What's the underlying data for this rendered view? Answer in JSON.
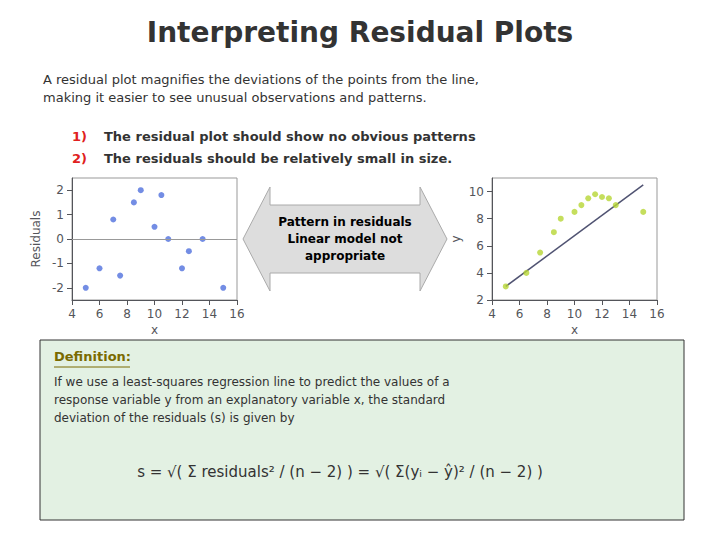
{
  "chart_data": [
    {
      "type": "scatter",
      "title": "Interpreting Residual Plots",
      "annotations": [
        "A residual plot magnifies the deviations of the points from the line,\nmaking it easier to see unusual observations and patterns.",
        "1)",
        "The residual plot should show no obvious patterns",
        "2)",
        "The residuals should be relatively small in size.",
        "Pattern in residuals\nLinear model not\nappropriate",
        "Definition:",
        "If we use a least-squares regression line to predict the values of a",
        "response variable y from an explanatory variable x, the standard",
        "deviation of the residuals (s) is given by",
        "s = √( Σ residuals² / (n − 2) ) = √( Σ(yᵢ − ŷ)² / (n − 2) )"
      ],
      "x": [
        5.0,
        6.0,
        7.0,
        7.5,
        8.5,
        9.0,
        10.0,
        10.5,
        11.0,
        12.0,
        12.5,
        13.5,
        15.0
      ],
      "values": [
        -2.0,
        -1.2,
        0.8,
        -1.5,
        1.5,
        2.0,
        0.5,
        1.8,
        0.0,
        -1.2,
        -0.5,
        0.0,
        -2.0
      ],
      "reference_line": 0,
      "xlabel": "x",
      "ylabel": "Residuals",
      "xlim": [
        4,
        16
      ],
      "xticks": [
        4,
        6,
        8,
        10,
        12,
        14,
        16
      ],
      "ylim": [
        -2.5,
        2.5
      ],
      "yticks": [
        -2,
        -1,
        0,
        1,
        2
      ],
      "grid": false
    },
    {
      "type": "scatter",
      "series": [
        {
          "type": "scatter",
          "x": [
            5.0,
            6.5,
            7.5,
            8.5,
            9.0,
            10.0,
            10.5,
            11.0,
            11.5,
            12.0,
            12.5,
            13.0,
            15.0
          ],
          "values": [
            3.0,
            4.0,
            5.5,
            7.0,
            8.0,
            8.5,
            9.0,
            9.5,
            9.8,
            9.6,
            9.5,
            9.0,
            8.5
          ]
        },
        {
          "type": "line",
          "x": [
            5.0,
            15.0
          ],
          "values": [
            3.0,
            10.5
          ]
        }
      ],
      "xlabel": "x",
      "ylabel": "y",
      "xlim": [
        4,
        16
      ],
      "xticks": [
        4,
        6,
        8,
        10,
        12,
        14,
        16
      ],
      "ylim": [
        2,
        11
      ],
      "yticks": [
        2,
        4,
        6,
        8,
        10
      ],
      "grid": false
    }
  ]
}
